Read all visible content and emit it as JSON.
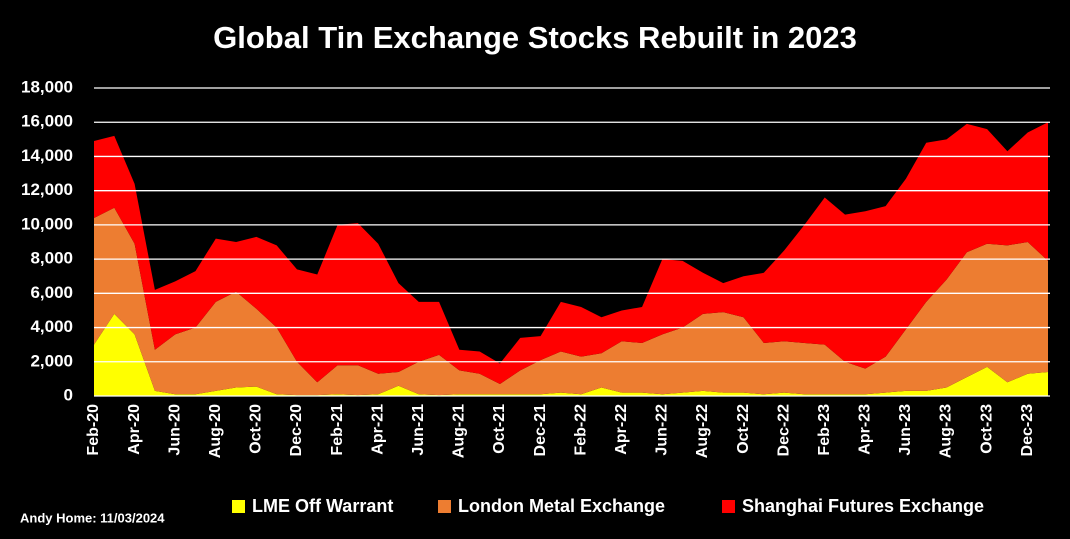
{
  "chart_data": {
    "type": "stacked_area",
    "title": "Global Tin Exchange Stocks Rebuilt in 2023",
    "note": "Andy Home: 11/03/2024",
    "categories": [
      "Feb-20",
      null,
      "Apr-20",
      null,
      "Jun-20",
      null,
      "Aug-20",
      null,
      "Oct-20",
      null,
      "Dec-20",
      null,
      "Feb-21",
      null,
      "Apr-21",
      null,
      "Jun-21",
      null,
      "Aug-21",
      null,
      "Oct-21",
      null,
      "Dec-21",
      null,
      "Feb-22",
      null,
      "Apr-22",
      null,
      "Jun-22",
      null,
      "Aug-22",
      null,
      "Oct-22",
      null,
      "Dec-22",
      null,
      "Feb-23",
      null,
      "Apr-23",
      null,
      "Jun-23",
      null,
      "Aug-23",
      null,
      "Oct-23",
      null,
      "Dec-23",
      null
    ],
    "series": [
      {
        "name": "LME Off Warrant",
        "color": "#ffff00",
        "values": [
          3000,
          4800,
          3600,
          300,
          100,
          100,
          300,
          500,
          550,
          100,
          50,
          50,
          100,
          50,
          100,
          600,
          100,
          50,
          100,
          100,
          100,
          100,
          100,
          200,
          100,
          500,
          200,
          200,
          100,
          200,
          300,
          200,
          200,
          100,
          200,
          100,
          100,
          100,
          100,
          200,
          300,
          300,
          500,
          1100,
          1700,
          800,
          1300,
          1400
        ]
      },
      {
        "name": "London Metal Exchange",
        "color": "#ed7d31",
        "values": [
          7400,
          6200,
          5300,
          2400,
          3500,
          3900,
          5200,
          5600,
          4550,
          3900,
          1950,
          750,
          1700,
          1750,
          1200,
          800,
          1900,
          2350,
          1400,
          1200,
          600,
          1400,
          2000,
          2400,
          2200,
          2000,
          3000,
          2900,
          3500,
          3800,
          4500,
          4700,
          4400,
          3000,
          3000,
          3000,
          2900,
          1900,
          1500,
          2100,
          3600,
          5200,
          6300,
          7300,
          7200,
          8000,
          7700,
          6500
        ]
      },
      {
        "name": "Shanghai Futures Exchange",
        "color": "#ff0000",
        "values": [
          4500,
          4200,
          3500,
          3500,
          3100,
          3300,
          3700,
          2900,
          4200,
          4800,
          5400,
          6300,
          8200,
          8300,
          7600,
          5200,
          3500,
          3100,
          1200,
          1300,
          1200,
          1900,
          1400,
          2900,
          2900,
          2100,
          1800,
          2100,
          4400,
          3900,
          2400,
          1700,
          2400,
          4100,
          5300,
          6900,
          8600,
          8600,
          9200,
          8800,
          8800,
          9300,
          8200,
          7500,
          6700,
          5500,
          6400,
          8100
        ]
      }
    ],
    "ylim": [
      0,
      18000
    ],
    "yticks": [
      0,
      {
        "value": 2000,
        "label": "2,000"
      },
      {
        "value": 4000,
        "label": "4,000"
      },
      {
        "value": 6000,
        "label": "6,000"
      },
      {
        "value": 8000,
        "label": "8,000"
      },
      {
        "value": 10000,
        "label": "10,000"
      },
      {
        "value": 12000,
        "label": "12,000"
      },
      {
        "value": 14000,
        "label": "14,000"
      },
      {
        "value": 16000,
        "label": "16,000"
      },
      {
        "value": 18000,
        "label": "18,000"
      }
    ],
    "grid": true
  }
}
